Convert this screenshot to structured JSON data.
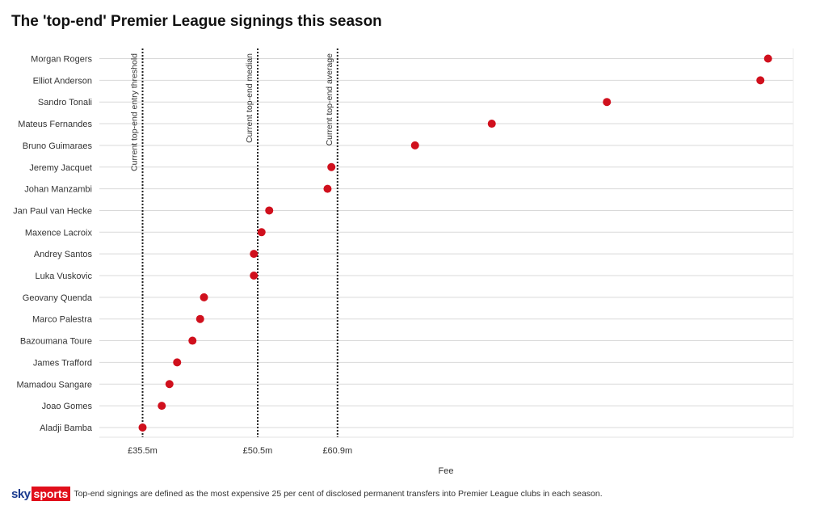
{
  "page": {
    "title": "The 'top-end' Premier League signings this season",
    "footnote": "Top-end signings are defined as the most expensive 25 per cent of disclosed permanent transfers into Premier League clubs in each season.",
    "logo": {
      "sky": "sky",
      "sports": "sports"
    }
  },
  "chart_data": {
    "type": "scatter",
    "title": "The 'top-end' Premier League signings this season",
    "xlabel": "Fee",
    "ylabel": "",
    "xlim": [
      30,
      120
    ],
    "x_unit": "£m",
    "xticks": [
      {
        "value": 35.5,
        "label": "£35.5m"
      },
      {
        "value": 50.5,
        "label": "£50.5m"
      },
      {
        "value": 60.9,
        "label": "£60.9m"
      }
    ],
    "reference_lines": [
      {
        "value": 35.5,
        "label": "Current top-end entry threshold"
      },
      {
        "value": 50.5,
        "label": "Current top-end median"
      },
      {
        "value": 60.9,
        "label": "Current top-end average"
      }
    ],
    "categories": [
      "Morgan Rogers",
      "Elliot Anderson",
      "Sandro Tonali",
      "Mateus Fernandes",
      "Bruno Guimaraes",
      "Jeremy Jacquet",
      "Johan Manzambi",
      "Jan Paul van Hecke",
      "Maxence Lacroix",
      "Andrey Santos",
      "Luka Vuskovic",
      "Geovany Quenda",
      "Marco Palestra",
      "Bazoumana Toure",
      "James Trafford",
      "Mamadou Sangare",
      "Joao Gomes",
      "Aladji Bamba"
    ],
    "values": [
      117,
      116,
      96,
      81,
      71,
      60.1,
      59.6,
      52,
      51,
      50,
      50,
      43.5,
      43,
      42,
      40,
      39,
      38,
      35.5
    ],
    "marker_color": "#d0101d",
    "grid": true,
    "grid_color": "#d9d9d9"
  }
}
